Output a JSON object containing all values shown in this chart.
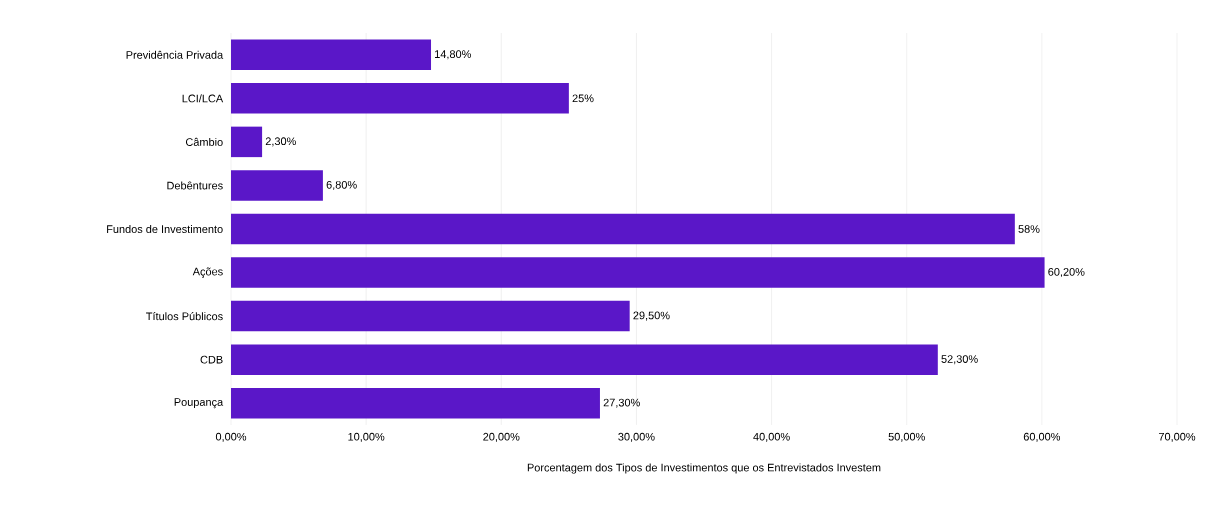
{
  "chart_data": {
    "type": "bar",
    "orientation": "horizontal",
    "xlabel": "Porcentagem dos Tipos de Investimentos que os Entrevistados Investem",
    "categories": [
      "Previdência Privada",
      "LCI/LCA",
      "Câmbio",
      "Debêntures",
      "Fundos de Investimento",
      "Ações",
      "Títulos Públicos",
      "CDB",
      "Poupança"
    ],
    "values": [
      14.8,
      25,
      2.3,
      6.8,
      58,
      60.2,
      29.5,
      52.3,
      27.3
    ],
    "value_labels": [
      "14,80%",
      "25%",
      "2,30%",
      "6,80%",
      "58%",
      "60,20%",
      "29,50%",
      "52,30%",
      "27,30%"
    ],
    "color": "#5a17c8",
    "xlim": [
      0,
      70
    ],
    "xticks": [
      {
        "value": 0,
        "label": "0,00%"
      },
      {
        "value": 10,
        "label": "10,00%"
      },
      {
        "value": 20,
        "label": "20,00%"
      },
      {
        "value": 30,
        "label": "30,00%"
      },
      {
        "value": 40,
        "label": "40,00%"
      },
      {
        "value": 50,
        "label": "50,00%"
      },
      {
        "value": 60,
        "label": "60,00%"
      },
      {
        "value": 70,
        "label": "70,00%"
      }
    ],
    "grid": "x"
  }
}
